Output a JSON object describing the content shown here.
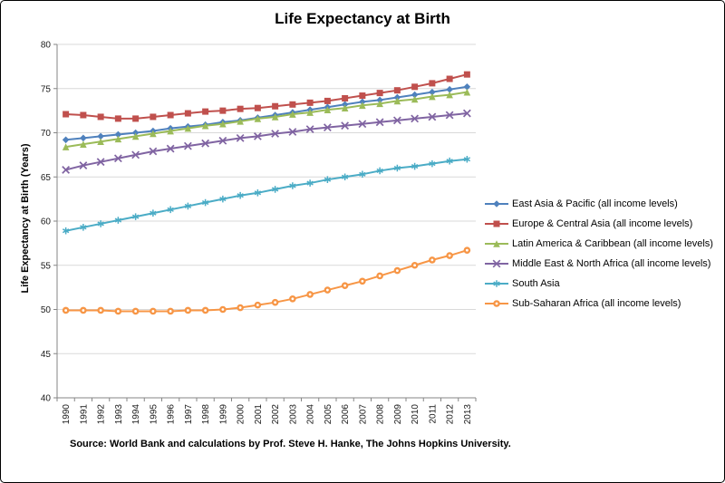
{
  "source_note": "Source: World Bank and calculations by Prof. Steve H. Hanke, The Johns Hopkins University.",
  "chart_data": {
    "type": "line",
    "title": "Life Expectancy at Birth",
    "xlabel": "",
    "ylabel": "Life Expectancy at Birth (Years)",
    "ylim": [
      40,
      80
    ],
    "ytick_step": 5,
    "grid": true,
    "legend_position": "right",
    "x": [
      1990,
      1991,
      1992,
      1993,
      1994,
      1995,
      1996,
      1997,
      1998,
      1999,
      2000,
      2001,
      2002,
      2003,
      2004,
      2005,
      2006,
      2007,
      2008,
      2009,
      2010,
      2011,
      2012,
      2013
    ],
    "series": [
      {
        "name": "East Asia & Pacific (all income levels)",
        "color": "#4F81BD",
        "marker": "diamond",
        "values": [
          69.2,
          69.4,
          69.6,
          69.8,
          70.0,
          70.2,
          70.5,
          70.7,
          70.9,
          71.2,
          71.4,
          71.7,
          72.0,
          72.3,
          72.6,
          72.9,
          73.2,
          73.5,
          73.7,
          74.0,
          74.3,
          74.6,
          74.9,
          75.2
        ]
      },
      {
        "name": "Europe & Central Asia (all income levels)",
        "color": "#C0504D",
        "marker": "square",
        "values": [
          72.1,
          72.0,
          71.8,
          71.6,
          71.6,
          71.8,
          72.0,
          72.2,
          72.4,
          72.5,
          72.7,
          72.8,
          73.0,
          73.2,
          73.4,
          73.6,
          73.9,
          74.2,
          74.5,
          74.8,
          75.2,
          75.6,
          76.1,
          76.6
        ]
      },
      {
        "name": "Latin America & Caribbean (all income levels)",
        "color": "#9BBB59",
        "marker": "triangle",
        "values": [
          68.4,
          68.7,
          69.0,
          69.3,
          69.6,
          69.9,
          70.2,
          70.5,
          70.8,
          71.0,
          71.3,
          71.6,
          71.8,
          72.1,
          72.3,
          72.6,
          72.8,
          73.1,
          73.3,
          73.6,
          73.8,
          74.1,
          74.3,
          74.6
        ]
      },
      {
        "name": "Middle East & North Africa (all income levels)",
        "color": "#8064A2",
        "marker": "x",
        "values": [
          65.8,
          66.3,
          66.7,
          67.1,
          67.5,
          67.9,
          68.2,
          68.5,
          68.8,
          69.1,
          69.4,
          69.6,
          69.9,
          70.1,
          70.4,
          70.6,
          70.8,
          71.0,
          71.2,
          71.4,
          71.6,
          71.8,
          72.0,
          72.2
        ]
      },
      {
        "name": "South Asia",
        "color": "#4BACC6",
        "marker": "asterisk",
        "values": [
          58.9,
          59.3,
          59.7,
          60.1,
          60.5,
          60.9,
          61.3,
          61.7,
          62.1,
          62.5,
          62.9,
          63.2,
          63.6,
          64.0,
          64.3,
          64.7,
          65.0,
          65.3,
          65.7,
          66.0,
          66.2,
          66.5,
          66.8,
          67.0
        ]
      },
      {
        "name": "Sub-Saharan Africa (all income levels)",
        "color": "#F79646",
        "marker": "circle",
        "values": [
          49.9,
          49.9,
          49.9,
          49.8,
          49.8,
          49.8,
          49.8,
          49.9,
          49.9,
          50.0,
          50.2,
          50.5,
          50.8,
          51.2,
          51.7,
          52.2,
          52.7,
          53.2,
          53.8,
          54.4,
          55.0,
          55.6,
          56.1,
          56.7
        ]
      }
    ]
  }
}
